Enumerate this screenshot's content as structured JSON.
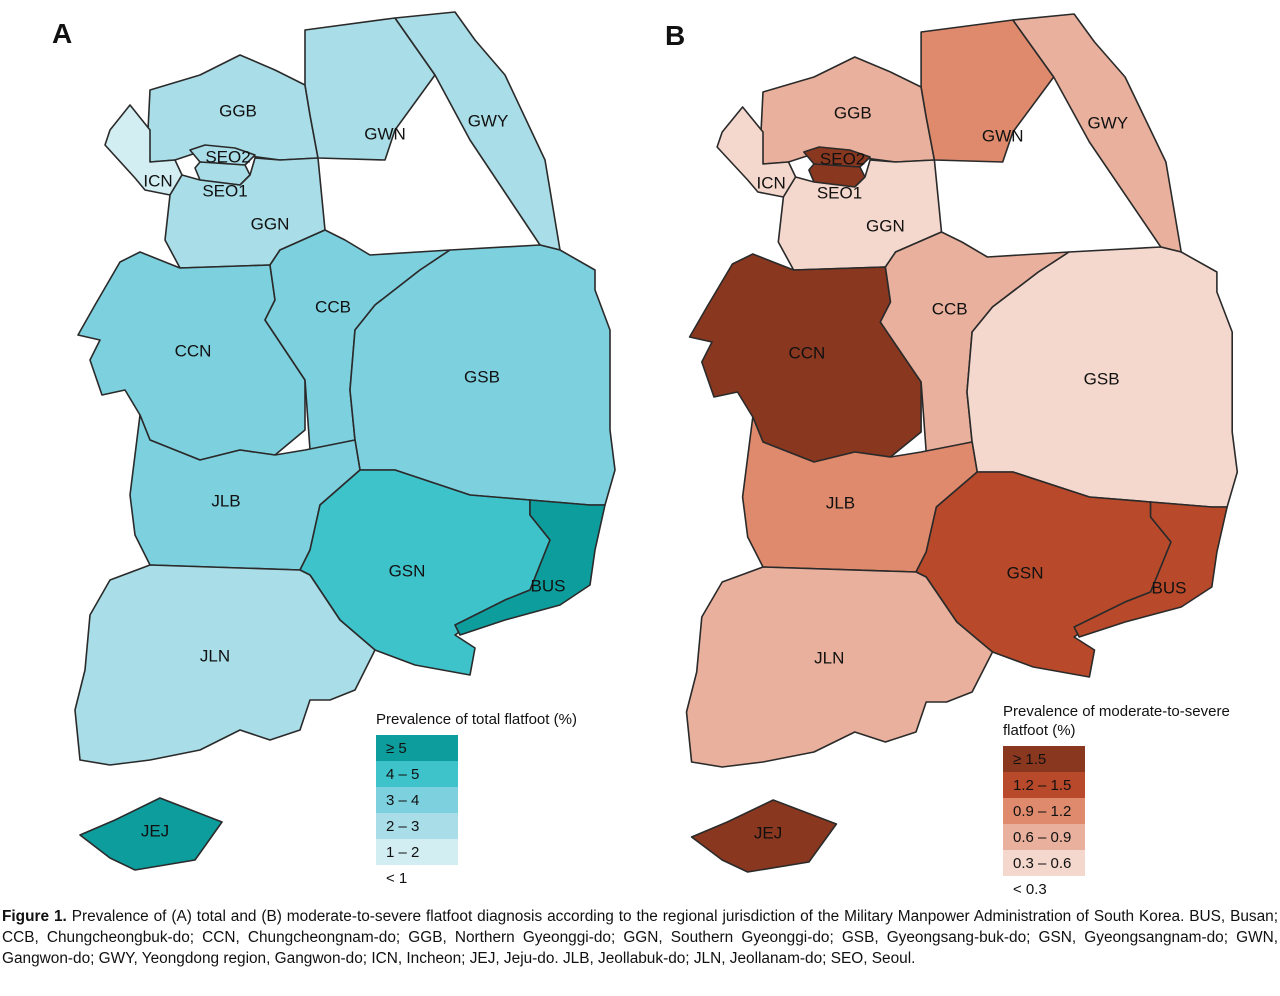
{
  "panels": [
    {
      "letter": "A",
      "legend_title": "Prevalence of total flatfoot (%)",
      "legend": [
        {
          "label": "≥ 5",
          "color": "#0e9d9d"
        },
        {
          "label": "4 – 5",
          "color": "#3fc3cb"
        },
        {
          "label": "3 – 4",
          "color": "#7dd0de"
        },
        {
          "label": "2 – 3",
          "color": "#a9dde7"
        },
        {
          "label": "1 – 2",
          "color": "#d2eef3"
        },
        {
          "label": "< 1",
          "color": "#ffffff"
        }
      ],
      "regions": {
        "GGB": "#a9dde7",
        "SEO2": "#a9dde7",
        "SEO1": "#a9dde7",
        "ICN": "#d2eef3",
        "GGN": "#a9dde7",
        "GWN": "#a9dde7",
        "GWY": "#a9dde7",
        "CCN": "#7dd0de",
        "CCB": "#7dd0de",
        "GSB": "#7dd0de",
        "JLB": "#7dd0de",
        "GSN": "#3fc3cb",
        "BUS": "#0e9d9d",
        "JLN": "#a9dde7",
        "JEJ": "#0e9d9d"
      }
    },
    {
      "letter": "B",
      "legend_title": "Prevalence of moderate-to-severe flatfoot (%)",
      "legend": [
        {
          "label": "≥ 1.5",
          "color": "#8a3720"
        },
        {
          "label": "1.2 – 1.5",
          "color": "#b84a2b"
        },
        {
          "label": "0.9 – 1.2",
          "color": "#df8a6c"
        },
        {
          "label": "0.6 – 0.9",
          "color": "#e9b19d"
        },
        {
          "label": "0.3 – 0.6",
          "color": "#f4d8cd"
        },
        {
          "label": "< 0.3",
          "color": "#ffffff"
        }
      ],
      "regions": {
        "GGB": "#e9b19d",
        "SEO2": "#8a3720",
        "SEO1": "#8a3720",
        "ICN": "#f4d8cd",
        "GGN": "#f4d8cd",
        "GWN": "#df8a6c",
        "GWY": "#e9b19d",
        "CCN": "#8a3720",
        "CCB": "#e9b19d",
        "GSB": "#f4d8cd",
        "JLB": "#df8a6c",
        "GSN": "#b84a2b",
        "BUS": "#b84a2b",
        "JLN": "#e9b19d",
        "JEJ": "#8a3720"
      }
    }
  ],
  "region_labels": [
    "GGB",
    "SEO2",
    "SEO1",
    "ICN",
    "GGN",
    "GWN",
    "GWY",
    "CCN",
    "CCB",
    "GSB",
    "JLB",
    "GSN",
    "BUS",
    "JLN",
    "JEJ"
  ],
  "caption": {
    "title": "Figure 1.",
    "text": "Prevalence of (A) total and (B) moderate-to-severe flatfoot diagnosis according to the regional jurisdiction of the Military Manpower Administration of South Korea. BUS, Busan; CCB, Chungcheongbuk-do; CCN, Chungcheongnam-do; GGB, Northern Gyeonggi-do; GGN, Southern Gyeonggi-do; GSB, Gyeongsang-buk-do; GSN, Gyeongsangnam-do; GWN, Gangwon-do; GWY, Yeongdong region, Gangwon-do; ICN, Incheon; JEJ, Jeju-do. JLB, Jeollabuk-do; JLN, Jeollanam-do; SEO, Seoul."
  }
}
